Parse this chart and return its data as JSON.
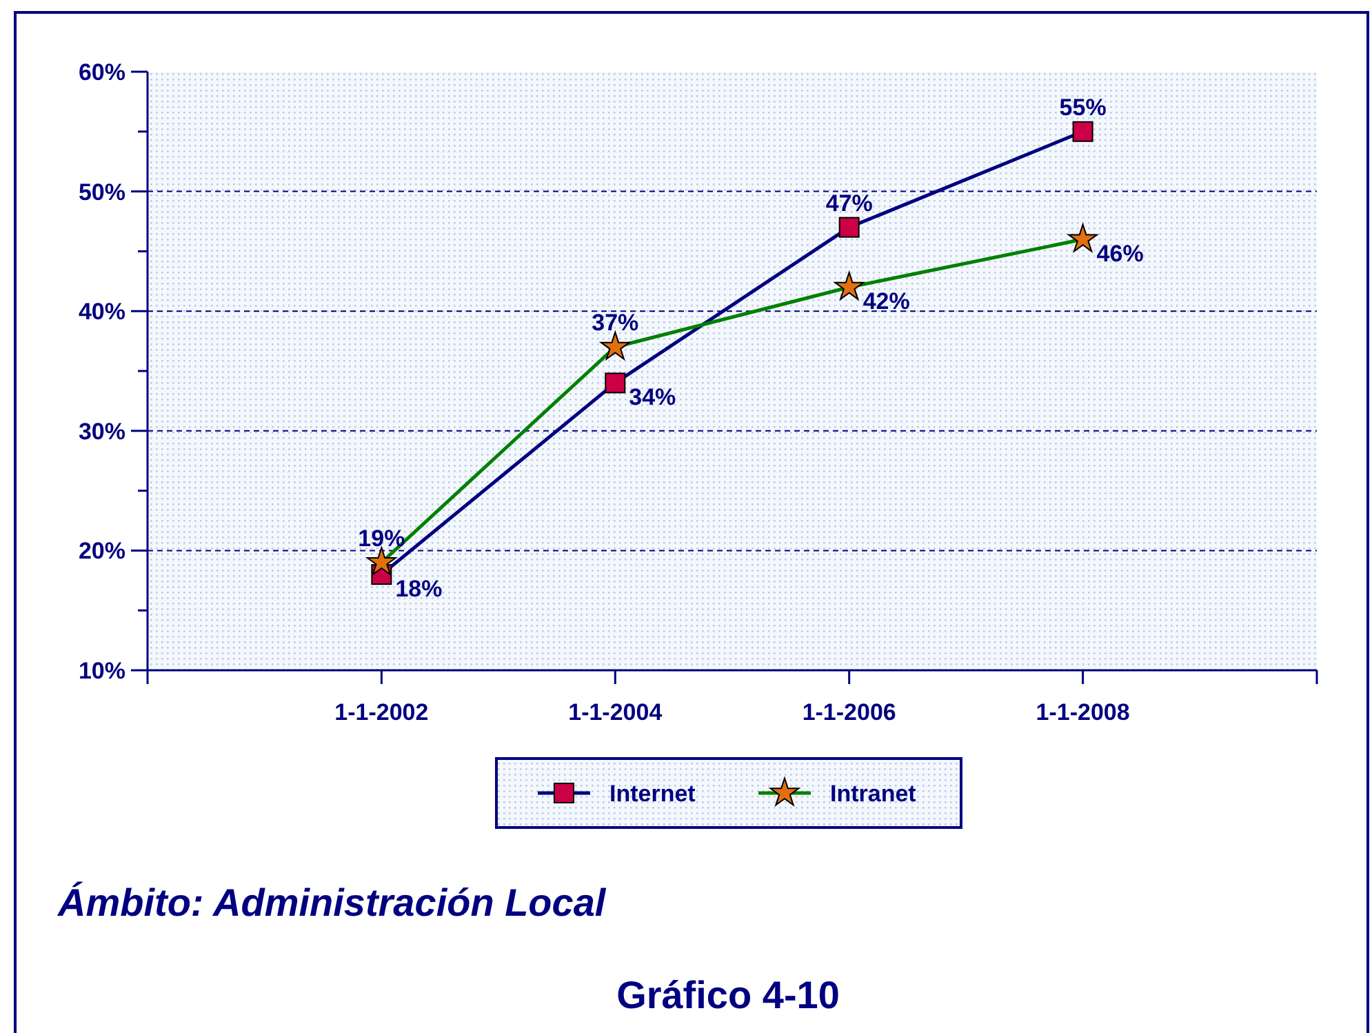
{
  "chart_data": {
    "type": "line",
    "x": [
      "2002-01-01",
      "2004-01-01",
      "2006-01-01",
      "2008-01-01"
    ],
    "xlim": [
      "2000-01-01",
      "2010-01-01"
    ],
    "xticks": [
      {
        "value": "2000-01-01",
        "label": null
      },
      {
        "value": "2002-01-01",
        "label": "1-1-2002"
      },
      {
        "value": "2004-01-01",
        "label": "1-1-2004"
      },
      {
        "value": "2006-01-01",
        "label": "1-1-2006"
      },
      {
        "value": "2008-01-01",
        "label": "1-1-2008"
      },
      {
        "value": "2010-01-01",
        "label": null
      }
    ],
    "ylim": [
      10,
      60
    ],
    "yticks": [
      {
        "value": 10,
        "label": "10%"
      },
      {
        "value": 15,
        "label": null
      },
      {
        "value": 20,
        "label": "20%"
      },
      {
        "value": 25,
        "label": null
      },
      {
        "value": 30,
        "label": "30%"
      },
      {
        "value": 35,
        "label": null
      },
      {
        "value": 40,
        "label": "40%"
      },
      {
        "value": 45,
        "label": null
      },
      {
        "value": 50,
        "label": "50%"
      },
      {
        "value": 55,
        "label": null
      },
      {
        "value": 60,
        "label": "60%"
      }
    ],
    "grid": "y",
    "legend": "bottom",
    "series": [
      {
        "name": "Internet",
        "color": "#000080",
        "marker": "square",
        "values": [
          18,
          34,
          47,
          55
        ],
        "value_labels": [
          "18%",
          "34%",
          "47%",
          "55%"
        ]
      },
      {
        "name": "Intranet",
        "color": "#008000",
        "marker": "star",
        "values": [
          19,
          37,
          42,
          46
        ],
        "value_labels": [
          "19%",
          "37%",
          "42%",
          "46%"
        ]
      }
    ],
    "annotations": [
      "Ámbito: Administración Local",
      "Gráfico 4-10"
    ]
  }
}
